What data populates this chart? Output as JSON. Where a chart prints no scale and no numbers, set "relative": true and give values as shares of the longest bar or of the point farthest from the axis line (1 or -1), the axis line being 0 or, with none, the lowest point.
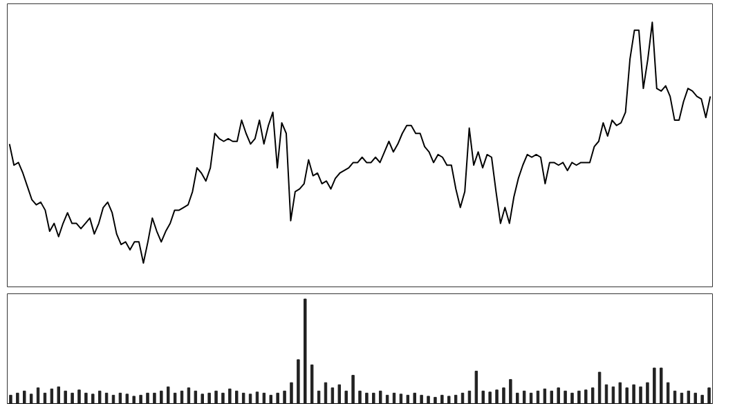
{
  "chart_data": [
    {
      "type": "line",
      "relative": true,
      "categories": [
        null,
        null,
        null,
        null,
        null,
        null,
        null,
        null,
        null,
        null,
        null,
        null,
        null,
        null,
        null,
        null,
        null,
        null,
        null,
        null,
        null,
        null,
        null,
        null,
        null,
        null,
        null,
        null,
        null,
        null,
        null,
        null,
        null,
        null,
        null,
        null,
        null,
        null,
        null,
        null,
        null,
        null,
        null,
        null,
        null,
        null,
        null,
        null,
        null,
        null,
        null,
        null,
        null,
        null,
        null,
        null,
        null,
        null,
        null,
        null,
        null,
        null,
        null,
        null,
        null,
        null,
        null,
        null,
        null,
        null,
        null,
        null,
        null,
        null,
        null,
        null,
        null,
        null,
        null,
        null,
        null,
        null,
        null,
        null,
        null,
        null,
        null,
        null,
        null,
        null,
        null,
        null,
        null,
        null,
        null,
        null,
        null,
        null,
        null,
        null,
        null,
        null,
        null,
        null,
        null,
        null,
        null,
        null,
        null,
        null,
        null,
        null,
        null,
        null,
        null,
        null,
        null,
        null,
        null,
        null,
        null,
        null,
        null,
        null,
        null,
        null,
        null,
        null,
        null,
        null,
        null,
        null,
        null,
        null,
        null,
        null,
        null,
        null,
        null,
        null,
        null,
        null,
        null,
        null,
        null,
        null,
        null,
        null,
        null,
        null,
        null,
        null,
        null,
        null,
        null,
        null,
        null,
        null
      ],
      "series": [
        {
          "color": "#000000",
          "values": [
            0.54,
            0.46,
            0.47,
            0.43,
            0.38,
            0.33,
            0.31,
            0.32,
            0.29,
            0.21,
            0.24,
            0.19,
            0.24,
            0.28,
            0.24,
            0.24,
            0.22,
            0.24,
            0.26,
            0.2,
            0.24,
            0.3,
            0.32,
            0.28,
            0.2,
            0.16,
            0.17,
            0.14,
            0.17,
            0.17,
            0.09,
            0.17,
            0.26,
            0.21,
            0.17,
            0.21,
            0.24,
            0.29,
            0.29,
            0.3,
            0.31,
            0.36,
            0.45,
            0.43,
            0.4,
            0.45,
            0.58,
            0.56,
            0.55,
            0.56,
            0.55,
            0.55,
            0.63,
            0.58,
            0.54,
            0.56,
            0.63,
            0.54,
            0.61,
            0.66,
            0.45,
            0.62,
            0.58,
            0.25,
            0.36,
            0.37,
            0.39,
            0.48,
            0.42,
            0.43,
            0.39,
            0.4,
            0.37,
            0.41,
            0.43,
            0.44,
            0.45,
            0.47,
            0.47,
            0.49,
            0.47,
            0.47,
            0.49,
            0.47,
            0.51,
            0.55,
            0.51,
            0.54,
            0.58,
            0.61,
            0.61,
            0.58,
            0.58,
            0.53,
            0.51,
            0.47,
            0.5,
            0.49,
            0.46,
            0.46,
            0.37,
            0.3,
            0.36,
            0.6,
            0.46,
            0.51,
            0.45,
            0.5,
            0.49,
            0.36,
            0.24,
            0.3,
            0.24,
            0.34,
            0.41,
            0.46,
            0.5,
            0.49,
            0.5,
            0.49,
            0.39,
            0.47,
            0.47,
            0.46,
            0.47,
            0.44,
            0.47,
            0.46,
            0.47,
            0.47,
            0.47,
            0.53,
            0.55,
            0.62,
            0.57,
            0.63,
            0.61,
            0.62,
            0.66,
            0.86,
            0.97,
            0.97,
            0.75,
            0.86,
            1.0,
            0.75,
            0.74,
            0.76,
            0.72,
            0.63,
            0.63,
            0.7,
            0.75,
            0.74,
            0.72,
            0.71,
            0.64,
            0.72
          ]
        }
      ]
    },
    {
      "type": "bar",
      "relative": true,
      "categories": [
        null,
        null,
        null,
        null,
        null,
        null,
        null,
        null,
        null,
        null,
        null,
        null,
        null,
        null,
        null,
        null,
        null,
        null,
        null,
        null,
        null,
        null,
        null,
        null,
        null,
        null,
        null,
        null,
        null,
        null,
        null,
        null,
        null,
        null,
        null,
        null,
        null,
        null,
        null,
        null,
        null,
        null,
        null,
        null,
        null,
        null,
        null,
        null,
        null,
        null,
        null,
        null,
        null,
        null,
        null,
        null,
        null,
        null,
        null,
        null,
        null,
        null,
        null,
        null,
        null,
        null,
        null,
        null,
        null,
        null,
        null,
        null,
        null,
        null,
        null,
        null,
        null,
        null,
        null,
        null,
        null,
        null,
        null,
        null,
        null,
        null,
        null,
        null,
        null,
        null,
        null,
        null,
        null,
        null,
        null,
        null,
        null,
        null,
        null,
        null,
        null,
        null,
        null
      ],
      "series": [
        {
          "color": "#222222",
          "values": [
            0.08,
            0.1,
            0.12,
            0.09,
            0.15,
            0.1,
            0.14,
            0.16,
            0.12,
            0.1,
            0.13,
            0.1,
            0.09,
            0.12,
            0.1,
            0.08,
            0.1,
            0.09,
            0.07,
            0.08,
            0.1,
            0.1,
            0.12,
            0.16,
            0.1,
            0.12,
            0.15,
            0.12,
            0.09,
            0.1,
            0.12,
            0.1,
            0.14,
            0.12,
            0.1,
            0.09,
            0.11,
            0.1,
            0.08,
            0.1,
            0.12,
            0.2,
            0.42,
            1.0,
            0.37,
            0.12,
            0.2,
            0.15,
            0.18,
            0.12,
            0.27,
            0.12,
            0.1,
            0.1,
            0.12,
            0.08,
            0.1,
            0.09,
            0.08,
            0.1,
            0.08,
            0.07,
            0.06,
            0.08,
            0.07,
            0.08,
            0.1,
            0.12,
            0.31,
            0.12,
            0.11,
            0.13,
            0.15,
            0.23,
            0.1,
            0.12,
            0.1,
            0.12,
            0.14,
            0.12,
            0.15,
            0.12,
            0.1,
            0.12,
            0.13,
            0.15,
            0.3,
            0.18,
            0.16,
            0.2,
            0.15,
            0.18,
            0.16,
            0.2,
            0.34,
            0.34,
            0.2,
            0.12,
            0.1,
            0.12,
            0.1,
            0.08,
            0.15
          ]
        }
      ]
    }
  ]
}
